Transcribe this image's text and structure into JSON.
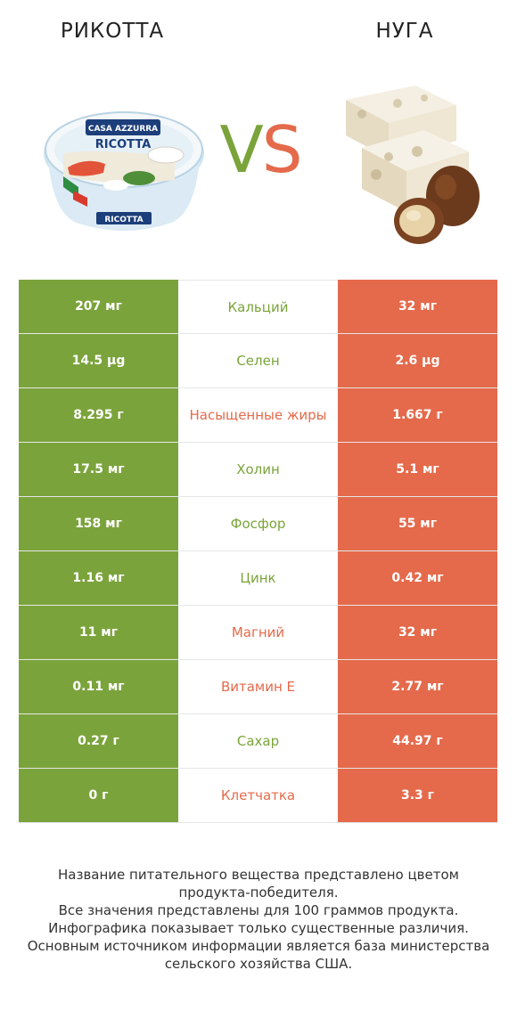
{
  "header": {
    "left_title": "РИКОТТА",
    "right_title": "НУГА",
    "vs_v": "V",
    "vs_s": "S"
  },
  "colors": {
    "left_winner": "#7ba33c",
    "right_winner": "#e46a4b"
  },
  "images": {
    "left_label_top": "CASA AZZURRA",
    "left_label_main": "RICOTTA",
    "left_label_bottom": "RICOTTA"
  },
  "rows": [
    {
      "left": "207 мг",
      "name": "Кальций",
      "right": "32 мг",
      "winner": "left"
    },
    {
      "left": "14.5 µg",
      "name": "Селен",
      "right": "2.6 µg",
      "winner": "left"
    },
    {
      "left": "8.295 г",
      "name": "Насыщенные жиры",
      "right": "1.667 г",
      "winner": "right"
    },
    {
      "left": "17.5 мг",
      "name": "Холин",
      "right": "5.1 мг",
      "winner": "left"
    },
    {
      "left": "158 мг",
      "name": "Фосфор",
      "right": "55 мг",
      "winner": "left"
    },
    {
      "left": "1.16 мг",
      "name": "Цинк",
      "right": "0.42 мг",
      "winner": "left"
    },
    {
      "left": "11 мг",
      "name": "Магний",
      "right": "32 мг",
      "winner": "right"
    },
    {
      "left": "0.11 мг",
      "name": "Витамин E",
      "right": "2.77 мг",
      "winner": "right"
    },
    {
      "left": "0.27 г",
      "name": "Сахар",
      "right": "44.97 г",
      "winner": "left"
    },
    {
      "left": "0 г",
      "name": "Клетчатка",
      "right": "3.3 г",
      "winner": "right"
    }
  ],
  "footer": {
    "line1": "Название питательного вещества представлено цветом",
    "line2": "продукта-победителя.",
    "line3": "Все значения представлены для 100 граммов продукта.",
    "line4": "Инфографика показывает только существенные различия.",
    "line5": "Основным источником информации является база министерства",
    "line6": "сельского хозяйства США."
  }
}
